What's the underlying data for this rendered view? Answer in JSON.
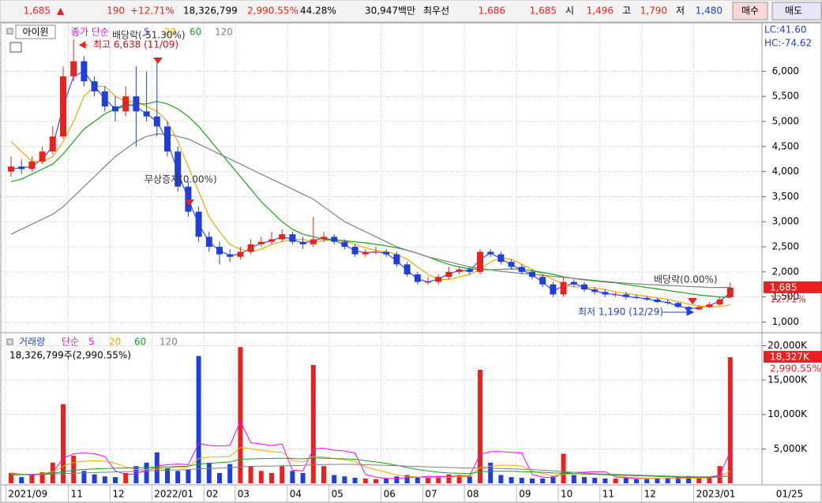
{
  "header": {
    "price": "1,685",
    "arrow": "▲",
    "change": "190",
    "rate": "+12.71%",
    "volume": "18,326,799",
    "volume_rate": "2,990.55%",
    "turnover": "44.28%",
    "amount": "30,947백만",
    "best_label": "최우선",
    "ask": "1,686",
    "bid": "1,685",
    "open_label": "시",
    "open": "1,496",
    "high_label": "고",
    "high": "1,790",
    "low_label": "저",
    "low": "1,480",
    "buy": "매수",
    "sell": "매도"
  },
  "chart_data": [
    {
      "type": "candlestick",
      "name_box": "아이윈",
      "legend_label": "종가 단순",
      "lc_label": "LC:41.60",
      "hc_label": "HC:-74.62",
      "x_end_label": "01/25",
      "categories": [
        "2021/09",
        null,
        null,
        null,
        null,
        null,
        "11",
        null,
        null,
        null,
        "12",
        null,
        null,
        null,
        "2022/01",
        null,
        null,
        null,
        null,
        "02",
        null,
        null,
        "03",
        null,
        null,
        null,
        null,
        "04",
        null,
        null,
        null,
        "05",
        null,
        null,
        null,
        null,
        "06",
        null,
        null,
        null,
        "07",
        null,
        null,
        null,
        "08",
        null,
        null,
        null,
        null,
        "09",
        null,
        null,
        null,
        "10",
        null,
        null,
        null,
        "11",
        null,
        null,
        null,
        "12",
        null,
        null,
        null,
        null,
        "2023/01",
        null,
        null,
        null
      ],
      "open": [
        4000,
        4100,
        4050,
        4200,
        4400,
        4700,
        5900,
        6200,
        5800,
        5600,
        5300,
        5200,
        5500,
        5200,
        5100,
        4900,
        4400,
        3700,
        3200,
        2700,
        2500,
        2350,
        2300,
        2400,
        2550,
        2600,
        2650,
        2750,
        2600,
        2550,
        2650,
        2700,
        2600,
        2500,
        2350,
        2400,
        2400,
        2350,
        2150,
        1950,
        1800,
        1800,
        1900,
        2000,
        2050,
        2000,
        2400,
        2350,
        2200,
        2100,
        2000,
        1900,
        1750,
        1550,
        1800,
        1750,
        1650,
        1600,
        1550,
        1550,
        1500,
        1480,
        1450,
        1400,
        1380,
        1300,
        1250,
        1300,
        1350,
        1496
      ],
      "high": [
        4300,
        4250,
        4300,
        4500,
        4900,
        6100,
        6638,
        6300,
        5900,
        5700,
        5500,
        5700,
        6100,
        6000,
        6200,
        5000,
        4500,
        3800,
        3300,
        2800,
        2600,
        2450,
        2500,
        2650,
        2700,
        2800,
        2850,
        2800,
        2700,
        3100,
        2800,
        2750,
        2650,
        2550,
        2450,
        2500,
        2450,
        2400,
        2200,
        2000,
        1900,
        1950,
        2100,
        2100,
        2100,
        2450,
        2450,
        2400,
        2250,
        2150,
        2050,
        1950,
        1800,
        1900,
        1850,
        1800,
        1700,
        1650,
        1600,
        1600,
        1550,
        1520,
        1480,
        1450,
        1400,
        1320,
        1330,
        1400,
        1500,
        1790
      ],
      "low": [
        3900,
        3950,
        4000,
        4150,
        4350,
        4650,
        5800,
        5700,
        5500,
        5200,
        5000,
        5100,
        4500,
        5000,
        4700,
        4300,
        3600,
        3100,
        2600,
        2400,
        2150,
        2200,
        2250,
        2350,
        2500,
        2550,
        2600,
        2550,
        2450,
        2500,
        2600,
        2550,
        2450,
        2300,
        2300,
        2350,
        2300,
        2100,
        1900,
        1750,
        1750,
        1750,
        1850,
        1950,
        1950,
        1950,
        2300,
        2150,
        2050,
        1950,
        1850,
        1700,
        1500,
        1500,
        1700,
        1600,
        1550,
        1500,
        1500,
        1450,
        1450,
        1420,
        1380,
        1350,
        1280,
        1190,
        1240,
        1280,
        1330,
        1480
      ],
      "close": [
        4100,
        4050,
        4200,
        4400,
        4700,
        5900,
        6200,
        5800,
        5600,
        5300,
        5200,
        5500,
        5200,
        5100,
        4900,
        4400,
        3700,
        3200,
        2700,
        2500,
        2350,
        2300,
        2400,
        2550,
        2600,
        2650,
        2750,
        2600,
        2550,
        2650,
        2700,
        2600,
        2500,
        2350,
        2400,
        2400,
        2350,
        2150,
        1950,
        1800,
        1800,
        1900,
        2000,
        2050,
        2000,
        2400,
        2350,
        2200,
        2100,
        2000,
        1900,
        1750,
        1550,
        1800,
        1750,
        1650,
        1600,
        1550,
        1550,
        1500,
        1480,
        1450,
        1400,
        1380,
        1300,
        1250,
        1300,
        1350,
        1450,
        1685
      ],
      "up_color": "#e8231f",
      "down_color": "#1f3fd6",
      "series": [
        {
          "name": "5",
          "color": "#3050ff",
          "values": [
            4050,
            4080,
            4100,
            4250,
            4500,
            5300,
            5900,
            6000,
            5700,
            5450,
            5250,
            5350,
            5300,
            5150,
            5000,
            4600,
            4000,
            3450,
            2950,
            2600,
            2420,
            2330,
            2350,
            2480,
            2570,
            2620,
            2700,
            2650,
            2570,
            2620,
            2680,
            2630,
            2540,
            2420,
            2380,
            2400,
            2370,
            2220,
            2030,
            1860,
            1800,
            1860,
            1960,
            2030,
            2020,
            2250,
            2380,
            2260,
            2140,
            2040,
            1940,
            1800,
            1620,
            1720,
            1770,
            1690,
            1620,
            1570,
            1550,
            1510,
            1490,
            1460,
            1420,
            1390,
            1320,
            1270,
            1280,
            1330,
            1420,
            1580
          ]
        },
        {
          "name": "20",
          "color": "#f0a800",
          "values": [
            4600,
            4400,
            4200,
            4200,
            4300,
            4600,
            5000,
            5500,
            5700,
            5700,
            5500,
            5400,
            5400,
            5300,
            5200,
            5000,
            4600,
            4100,
            3600,
            3100,
            2800,
            2550,
            2450,
            2400,
            2450,
            2550,
            2600,
            2650,
            2650,
            2600,
            2620,
            2650,
            2620,
            2550,
            2480,
            2430,
            2400,
            2350,
            2250,
            2100,
            1950,
            1850,
            1850,
            1900,
            1950,
            2050,
            2200,
            2280,
            2250,
            2150,
            2050,
            1950,
            1850,
            1750,
            1700,
            1700,
            1680,
            1650,
            1600,
            1570,
            1540,
            1510,
            1480,
            1450,
            1410,
            1360,
            1320,
            1300,
            1310,
            1340
          ]
        },
        {
          "name": "60",
          "color": "#1aa01a",
          "values": [
            3800,
            3850,
            3950,
            4050,
            4150,
            4350,
            4600,
            4850,
            5000,
            5150,
            5250,
            5300,
            5350,
            5350,
            5400,
            5350,
            5250,
            5100,
            4900,
            4650,
            4400,
            4150,
            3900,
            3650,
            3400,
            3200,
            3000,
            2850,
            2750,
            2700,
            2650,
            2630,
            2620,
            2600,
            2580,
            2550,
            2520,
            2480,
            2430,
            2370,
            2300,
            2220,
            2150,
            2100,
            2060,
            2050,
            2040,
            2050,
            2060,
            2050,
            2020,
            1990,
            1950,
            1900,
            1870,
            1840,
            1820,
            1800,
            1780,
            1750,
            1720,
            1690,
            1660,
            1630,
            1600,
            1570,
            1540,
            1520,
            1500,
            1490
          ]
        },
        {
          "name": "120",
          "color": "#808080",
          "values": [
            2750,
            2850,
            2950,
            3050,
            3150,
            3300,
            3500,
            3700,
            3900,
            4100,
            4300,
            4450,
            4600,
            4700,
            4750,
            4750,
            4700,
            4650,
            4550,
            4450,
            4350,
            4250,
            4150,
            4050,
            3950,
            3850,
            3750,
            3650,
            3550,
            3450,
            3300,
            3150,
            3000,
            2900,
            2800,
            2700,
            2600,
            2500,
            2430,
            2370,
            2300,
            2250,
            2200,
            2150,
            2100,
            2070,
            2040,
            2010,
            1990,
            1970,
            1950,
            1930,
            1910,
            1890,
            1870,
            1850,
            1830,
            1810,
            1790,
            1775,
            1760,
            1750,
            1740,
            1730,
            1720,
            1710,
            1700,
            1690,
            1690,
            1690
          ]
        }
      ],
      "ylim": [
        850,
        6950
      ],
      "yticks": [
        {
          "value": 1000,
          "label": "1,000"
        },
        {
          "value": 1500,
          "label": "1,500"
        },
        {
          "value": 2000,
          "label": "2,000"
        },
        {
          "value": 2500,
          "label": "2,500"
        },
        {
          "value": 3000,
          "label": "3,000"
        },
        {
          "value": 3500,
          "label": "3,500"
        },
        {
          "value": 4000,
          "label": "4,000"
        },
        {
          "value": 4500,
          "label": "4,500"
        },
        {
          "value": 5000,
          "label": "5,000"
        },
        {
          "value": 5500,
          "label": "5,500"
        },
        {
          "value": 6000,
          "label": "6,000"
        }
      ],
      "grid": true,
      "current": {
        "value": 1685,
        "label": "1,685"
      },
      "current_change": "12.71%",
      "annotations": [
        "배당락(-51.30%)",
        "최고 6,638 (11/09)",
        "무상증자(0.00%)",
        "배당락(0.00%)",
        "최저 1,190 (12/29)"
      ]
    },
    {
      "type": "bar",
      "legend_prefix": "거래량",
      "legend_label": "단순",
      "info": "18,326,799주(2,990.55%)",
      "values": [
        1500,
        900,
        1200,
        1600,
        3000,
        11500,
        4000,
        1800,
        1300,
        1000,
        900,
        1500,
        2500,
        3000,
        4500,
        2200,
        1800,
        2000,
        18500,
        3000,
        1500,
        2800,
        19800,
        2500,
        1800,
        1500,
        2500,
        1800,
        1500,
        17200,
        2500,
        1200,
        1000,
        800,
        700,
        600,
        700,
        1000,
        1200,
        900,
        800,
        1000,
        1300,
        1200,
        1000,
        16500,
        3000,
        1200,
        900,
        800,
        700,
        700,
        1000,
        4300,
        1200,
        900,
        800,
        700,
        700,
        800,
        600,
        600,
        700,
        800,
        900,
        1000,
        800,
        900,
        2500,
        18327
      ],
      "series": [
        {
          "name": "5",
          "color": "#ff00ff",
          "values": [
            1500,
            1300,
            1200,
            1300,
            1600,
            3600,
            4300,
            4400,
            4300,
            3900,
            1800,
            1300,
            1400,
            1800,
            2500,
            2700,
            2800,
            2700,
            5800,
            5500,
            5400,
            5500,
            9000,
            5900,
            5700,
            5500,
            5700,
            1900,
            1800,
            5000,
            5100,
            4800,
            4700,
            4400,
            1300,
            900,
            700,
            700,
            800,
            900,
            1000,
            1000,
            1000,
            1100,
            1100,
            4200,
            4600,
            4600,
            4500,
            4400,
            1300,
            900,
            800,
            1500,
            1600,
            1600,
            1700,
            1700,
            900,
            800,
            700,
            700,
            700,
            700,
            700,
            800,
            800,
            900,
            1200,
            4600
          ]
        },
        {
          "name": "20",
          "color": "#f0a800",
          "values": [
            1400,
            1350,
            1300,
            1400,
            1700,
            2500,
            3000,
            3200,
            3300,
            3200,
            2900,
            2400,
            2000,
            2000,
            2100,
            2200,
            2300,
            2400,
            3600,
            3800,
            3800,
            3900,
            5200,
            5000,
            4800,
            4600,
            4500,
            3300,
            3100,
            3900,
            3800,
            3600,
            3400,
            3200,
            2400,
            2000,
            1600,
            1200,
            1000,
            900,
            850,
            850,
            900,
            950,
            1000,
            2300,
            2500,
            2600,
            2600,
            2500,
            1800,
            1400,
            1100,
            1300,
            1400,
            1400,
            1400,
            1300,
            1100,
            900,
            800,
            750,
            700,
            700,
            700,
            750,
            750,
            800,
            900,
            1800
          ]
        },
        {
          "name": "60",
          "color": "#1aa01a",
          "values": [
            1200,
            1250,
            1300,
            1350,
            1450,
            1700,
            1900,
            2000,
            2100,
            2150,
            2200,
            2200,
            2250,
            2300,
            2350,
            2400,
            2450,
            2500,
            2800,
            2900,
            3000,
            3100,
            3500,
            3550,
            3600,
            3600,
            3650,
            3600,
            3550,
            3700,
            3650,
            3600,
            3550,
            3500,
            3300,
            3100,
            2900,
            2600,
            2300,
            2000,
            1800,
            1600,
            1500,
            1450,
            1400,
            1700,
            1750,
            1750,
            1750,
            1700,
            1650,
            1600,
            1500,
            1450,
            1400,
            1350,
            1300,
            1250,
            1200,
            1150,
            1100,
            1050,
            1000,
            950,
            900,
            850,
            850,
            850,
            900,
            1100
          ]
        },
        {
          "name": "120",
          "color": "#808080",
          "values": [
            1300,
            1300,
            1300,
            1300,
            1350,
            1400,
            1450,
            1500,
            1550,
            1600,
            1650,
            1700,
            1750,
            1800,
            1850,
            1900,
            1950,
            2000,
            2100,
            2150,
            2200,
            2250,
            2400,
            2450,
            2500,
            2500,
            2550,
            2550,
            2600,
            2700,
            2700,
            2750,
            2750,
            2750,
            2700,
            2650,
            2600,
            2550,
            2500,
            2450,
            2400,
            2350,
            2300,
            2250,
            2200,
            2250,
            2200,
            2150,
            2100,
            2050,
            2000,
            1900,
            1800,
            1700,
            1600,
            1500,
            1400,
            1350,
            1300,
            1250,
            1200,
            1150,
            1100,
            1050,
            1000,
            1000,
            950,
            950,
            950,
            1050
          ]
        }
      ],
      "ylim": [
        0,
        21200
      ],
      "yticks": [
        {
          "value": 5000,
          "label": "5,000K"
        },
        {
          "value": 10000,
          "label": "10,000K"
        },
        {
          "value": 15000,
          "label": "15,000K"
        },
        {
          "value": 20000,
          "label": "20,000K"
        }
      ],
      "grid": true,
      "current": {
        "value": 18327,
        "label": "18,327K"
      },
      "current_change": "2,990.55%"
    }
  ]
}
